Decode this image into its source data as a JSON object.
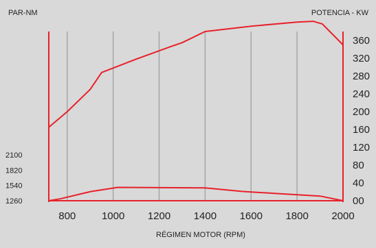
{
  "chart_data": {
    "type": "line",
    "left_axis_title": "PAR-NM",
    "right_axis_title": "POTENCIA - KW",
    "xlabel": "RÉGIMEN MOTOR (RPM)",
    "xlim": [
      720,
      2000
    ],
    "x_ticks": [
      800,
      1000,
      1200,
      1400,
      1600,
      1800,
      2000
    ],
    "right_ylim": [
      0,
      400
    ],
    "right_ticks": [
      0,
      40,
      80,
      120,
      160,
      200,
      240,
      280,
      320,
      360
    ],
    "right_tick_labels": [
      "00",
      "40",
      "80",
      "120",
      "160",
      "200",
      "240",
      "280",
      "320",
      "360"
    ],
    "left_ticks": [
      1260,
      1540,
      1820,
      2100
    ],
    "left_ylim": [
      1260,
      2100
    ],
    "grid_x": true,
    "line_color": "#e8202a",
    "series": [
      {
        "axis": "right",
        "x": [
          720,
          800,
          900,
          950,
          1100,
          1250,
          1300,
          1400,
          1600,
          1800,
          1870,
          1910,
          2000
        ],
        "y": [
          165,
          200,
          250,
          288,
          318,
          346,
          355,
          380,
          392,
          401,
          403,
          397,
          350
        ]
      },
      {
        "axis": "left",
        "x": [
          720,
          770,
          900,
          1020,
          1400,
          1560,
          1600,
          1700,
          1900,
          2000
        ],
        "y": [
          1260,
          1295,
          1425,
          1505,
          1495,
          1430,
          1420,
          1395,
          1345,
          1260
        ]
      }
    ]
  }
}
